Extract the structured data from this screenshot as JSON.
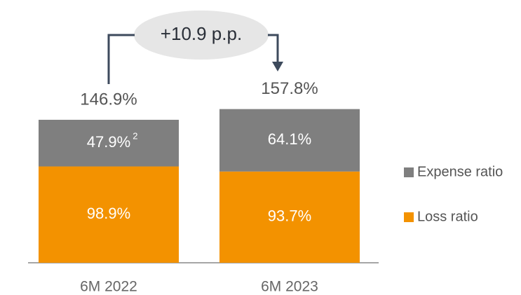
{
  "chart_data": {
    "type": "stacked_bar",
    "categories": [
      "6M 2022",
      "6M 2023"
    ],
    "series": [
      {
        "name": "Loss ratio",
        "color": "#f39200",
        "values": [
          98.9,
          93.7
        ],
        "value_labels": [
          "98.9%",
          "93.7%"
        ]
      },
      {
        "name": "Expense ratio",
        "color": "#7f7f7f",
        "values": [
          47.9,
          64.1
        ],
        "value_labels": [
          "47.9%",
          "64.1%"
        ]
      }
    ],
    "totals": [
      146.9,
      157.8
    ],
    "total_labels": [
      "146.9%",
      "157.8%"
    ],
    "footnote": "2",
    "annotation": "+10.9 p.p."
  }
}
